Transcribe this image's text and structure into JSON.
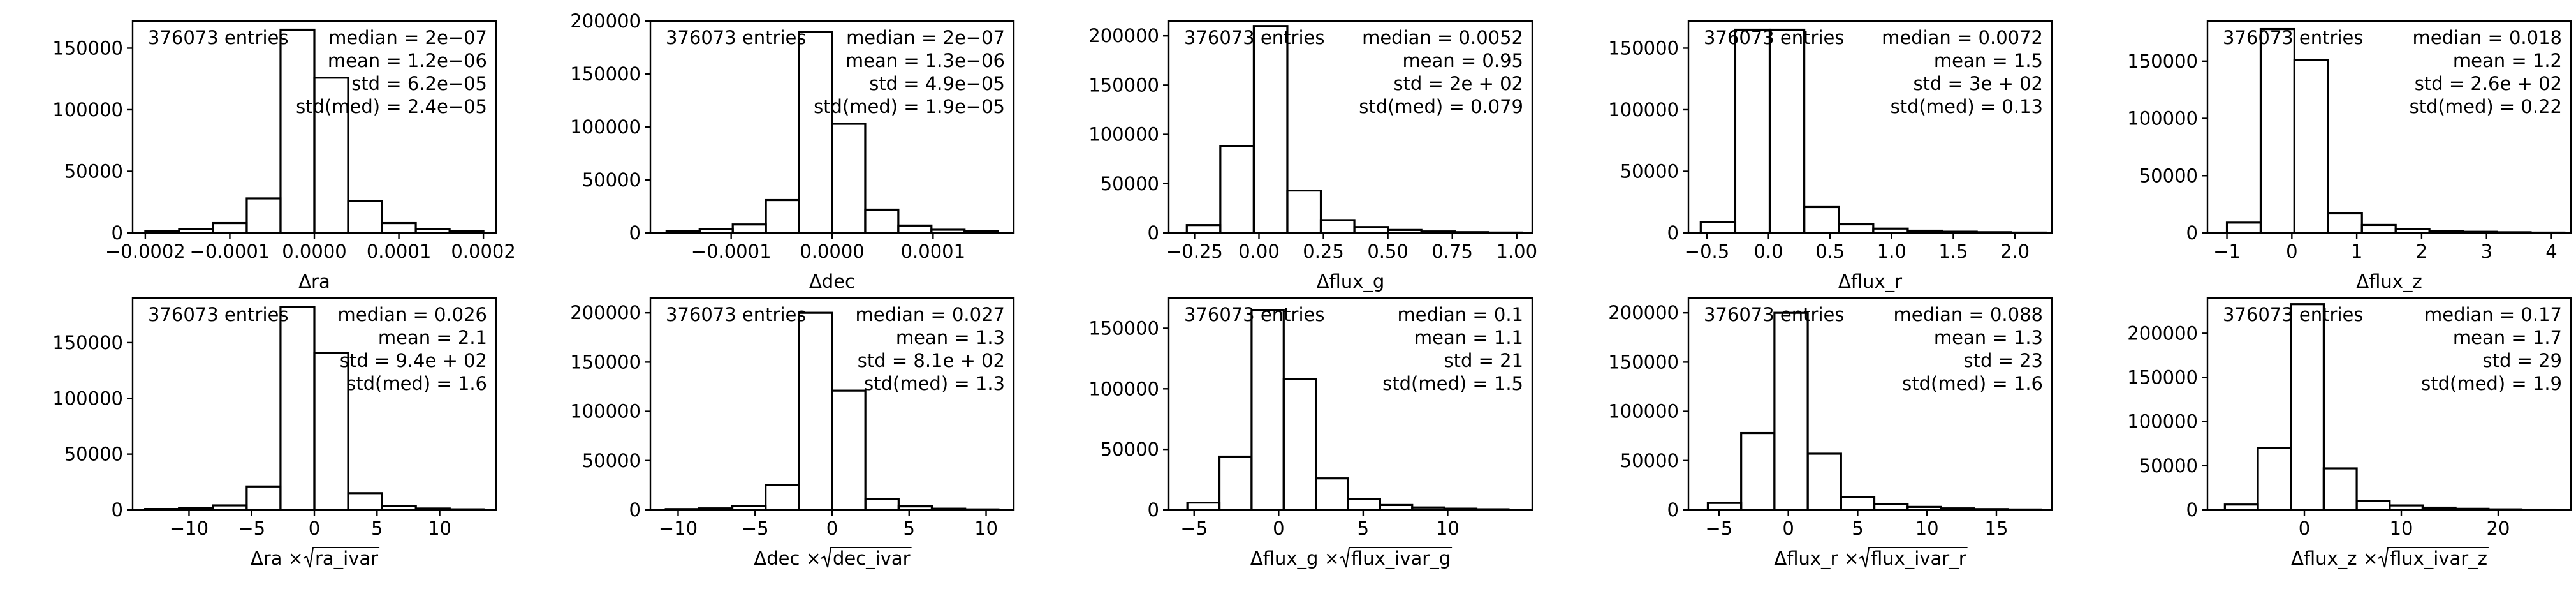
{
  "figure": {
    "background": "#ffffff",
    "line_color": "#000000"
  },
  "chart_data": [
    {
      "type": "bar",
      "xlabel": "Δra",
      "entries": "376073 entries",
      "stats": [
        "median = 2e−07",
        "mean = 1.2e−06",
        "std = 6.2e−05",
        "std(med) = 2.4e−05"
      ],
      "xlim": [
        -0.000215,
        0.000215
      ],
      "ylim": [
        0,
        172000
      ],
      "xticks": [
        -0.0002,
        -0.0001,
        0.0,
        0.0001,
        0.0002
      ],
      "xticklabels": [
        "−0.0002",
        "−0.0001",
        "0.0000",
        "0.0001",
        "0.0002"
      ],
      "yticks": [
        0,
        50000,
        100000,
        150000
      ],
      "yticklabels": [
        "0",
        "50000",
        "100000",
        "150000"
      ],
      "bin_edges": [
        -0.0002,
        -0.00016,
        -0.00012,
        -8e-05,
        -4e-05,
        0.0,
        4e-05,
        8e-05,
        0.00012,
        0.00016,
        0.0002
      ],
      "values": [
        1500,
        3000,
        8000,
        28000,
        165000,
        126000,
        26000,
        8000,
        3000,
        1500
      ]
    },
    {
      "type": "bar",
      "xlabel": "Δdec",
      "entries": "376073 entries",
      "stats": [
        "median = 2e−07",
        "mean = 1.3e−06",
        "std = 4.9e−05",
        "std(med) = 1.9e−05"
      ],
      "xlim": [
        -0.00018,
        0.00018
      ],
      "ylim": [
        0,
        200000
      ],
      "xticks": [
        -0.0001,
        0.0,
        0.0001
      ],
      "xticklabels": [
        "−0.0001",
        "0.0000",
        "0.0001"
      ],
      "yticks": [
        0,
        50000,
        100000,
        150000,
        200000
      ],
      "yticklabels": [
        "0",
        "50000",
        "100000",
        "150000",
        "200000"
      ],
      "bin_edges": [
        -0.000164,
        -0.0001312,
        -9.84e-05,
        -6.56e-05,
        -3.28e-05,
        0.0,
        3.28e-05,
        6.56e-05,
        9.84e-05,
        0.0001312,
        0.000164
      ],
      "values": [
        1500,
        3500,
        8000,
        31000,
        190000,
        103000,
        22000,
        7000,
        3000,
        1500
      ]
    },
    {
      "type": "bar",
      "xlabel": "Δflux_g",
      "entries": "376073 entries",
      "stats": [
        "median = 0.0052",
        "mean = 0.95",
        "std = 2e + 02",
        "std(med) = 0.079"
      ],
      "xlim": [
        -0.35,
        1.06
      ],
      "ylim": [
        0,
        215000
      ],
      "xticks": [
        -0.25,
        0.0,
        0.25,
        0.5,
        0.75,
        1.0
      ],
      "xticklabels": [
        "−0.25",
        "0.00",
        "0.25",
        "0.50",
        "0.75",
        "1.00"
      ],
      "yticks": [
        0,
        50000,
        100000,
        150000,
        200000
      ],
      "yticklabels": [
        "0",
        "50000",
        "100000",
        "150000",
        "200000"
      ],
      "bin_edges": [
        -0.28,
        -0.15,
        -0.02,
        0.11,
        0.24,
        0.37,
        0.5,
        0.63,
        0.76,
        0.89,
        1.02
      ],
      "values": [
        8000,
        88000,
        210000,
        43000,
        13000,
        6000,
        3000,
        1500,
        800,
        400
      ]
    },
    {
      "type": "bar",
      "xlabel": "Δflux_r",
      "entries": "376073 entries",
      "stats": [
        "median = 0.0072",
        "mean = 1.5",
        "std = 3e + 02",
        "std(med) = 0.13"
      ],
      "xlim": [
        -0.65,
        2.3
      ],
      "ylim": [
        0,
        172000
      ],
      "xticks": [
        -0.5,
        0.0,
        0.5,
        1.0,
        1.5,
        2.0
      ],
      "xticklabels": [
        "−0.5",
        "0.0",
        "0.5",
        "1.0",
        "1.5",
        "2.0"
      ],
      "yticks": [
        0,
        50000,
        100000,
        150000
      ],
      "yticklabels": [
        "0",
        "50000",
        "100000",
        "150000"
      ],
      "bin_edges": [
        -0.55,
        -0.27,
        0.01,
        0.29,
        0.57,
        0.85,
        1.13,
        1.41,
        1.69,
        1.97,
        2.25
      ],
      "values": [
        9000,
        165000,
        165000,
        21000,
        7000,
        3500,
        1800,
        1000,
        600,
        300
      ]
    },
    {
      "type": "bar",
      "xlabel": "Δflux_z",
      "entries": "376073 entries",
      "stats": [
        "median = 0.018",
        "mean = 1.2",
        "std = 2.6e + 02",
        "std(med) = 0.22"
      ],
      "xlim": [
        -1.3,
        4.3
      ],
      "ylim": [
        0,
        185000
      ],
      "xticks": [
        -1,
        0,
        1,
        2,
        3,
        4
      ],
      "xticklabels": [
        "−1",
        "0",
        "1",
        "2",
        "3",
        "4"
      ],
      "yticks": [
        0,
        50000,
        100000,
        150000
      ],
      "yticklabels": [
        "0",
        "50000",
        "100000",
        "150000"
      ],
      "bin_edges": [
        -1.0,
        -0.48,
        0.04,
        0.56,
        1.08,
        1.6,
        2.12,
        2.64,
        3.16,
        3.68,
        4.2
      ],
      "values": [
        9000,
        178000,
        151000,
        17000,
        7000,
        3500,
        1800,
        1000,
        600,
        300
      ]
    },
    {
      "type": "bar",
      "xlabel": "Δra × √ra_ivar",
      "xlabel_prefix": "Δra × ",
      "xlabel_root": "ra_ivar",
      "entries": "376073 entries",
      "stats": [
        "median = 0.026",
        "mean = 2.1",
        "std = 9.4e + 02",
        "std(med) = 1.6"
      ],
      "xlim": [
        -14.5,
        14.5
      ],
      "ylim": [
        0,
        190000
      ],
      "xticks": [
        -10,
        -5,
        0,
        5,
        10
      ],
      "xticklabels": [
        "−10",
        "−5",
        "0",
        "5",
        "10"
      ],
      "yticks": [
        0,
        50000,
        100000,
        150000
      ],
      "yticklabels": [
        "0",
        "50000",
        "100000",
        "150000"
      ],
      "bin_edges": [
        -13.5,
        -10.8,
        -8.1,
        -5.4,
        -2.7,
        0.0,
        2.7,
        5.4,
        8.1,
        10.8,
        13.5
      ],
      "values": [
        800,
        1500,
        4000,
        21000,
        182000,
        141000,
        15000,
        3500,
        1200,
        500
      ]
    },
    {
      "type": "bar",
      "xlabel": "Δdec × √dec_ivar",
      "xlabel_prefix": "Δdec × ",
      "xlabel_root": "dec_ivar",
      "entries": "376073 entries",
      "stats": [
        "median = 0.027",
        "mean = 1.3",
        "std = 8.1e + 02",
        "std(med) = 1.3"
      ],
      "xlim": [
        -11.8,
        11.8
      ],
      "ylim": [
        0,
        215000
      ],
      "xticks": [
        -10,
        -5,
        0,
        5,
        10
      ],
      "xticklabels": [
        "−10",
        "−5",
        "0",
        "5",
        "10"
      ],
      "yticks": [
        0,
        50000,
        100000,
        150000,
        200000
      ],
      "yticklabels": [
        "0",
        "50000",
        "100000",
        "150000",
        "200000"
      ],
      "bin_edges": [
        -10.8,
        -8.64,
        -6.48,
        -4.32,
        -2.16,
        0.0,
        2.16,
        4.32,
        6.48,
        8.64,
        10.8
      ],
      "values": [
        800,
        1500,
        4000,
        25000,
        200000,
        121000,
        11000,
        3500,
        1200,
        500
      ]
    },
    {
      "type": "bar",
      "xlabel": "Δflux_g × √flux_ivar_g",
      "xlabel_prefix": "Δflux_g × ",
      "xlabel_root": "flux_ivar_g",
      "entries": "376073 entries",
      "stats": [
        "median = 0.1",
        "mean = 1.1",
        "std = 21",
        "std(med) = 1.5"
      ],
      "xlim": [
        -6.5,
        15.0
      ],
      "ylim": [
        0,
        175000
      ],
      "xticks": [
        -5,
        0,
        5,
        10
      ],
      "xticklabels": [
        "−5",
        "0",
        "5",
        "10"
      ],
      "yticks": [
        0,
        50000,
        100000,
        150000
      ],
      "yticklabels": [
        "0",
        "50000",
        "100000",
        "150000"
      ],
      "bin_edges": [
        -5.4,
        -3.5,
        -1.6,
        0.3,
        2.2,
        4.1,
        6.0,
        7.9,
        9.8,
        11.7,
        13.6
      ],
      "values": [
        6000,
        44000,
        165000,
        108000,
        26000,
        9000,
        4000,
        2000,
        1000,
        500
      ]
    },
    {
      "type": "bar",
      "xlabel": "Δflux_r × √flux_ivar_r",
      "xlabel_prefix": "Δflux_r × ",
      "xlabel_root": "flux_ivar_r",
      "entries": "376073 entries",
      "stats": [
        "median = 0.088",
        "mean = 1.3",
        "std = 23",
        "std(med) = 1.6"
      ],
      "xlim": [
        -7.2,
        19.0
      ],
      "ylim": [
        0,
        215000
      ],
      "xticks": [
        -5,
        0,
        5,
        10,
        15
      ],
      "xticklabels": [
        "−5",
        "0",
        "5",
        "10",
        "15"
      ],
      "yticks": [
        0,
        50000,
        100000,
        150000,
        200000
      ],
      "yticklabels": [
        "0",
        "50000",
        "100000",
        "150000",
        "200000"
      ],
      "bin_edges": [
        -5.8,
        -3.4,
        -1.0,
        1.4,
        3.8,
        6.2,
        8.6,
        11.0,
        13.4,
        15.8,
        18.2
      ],
      "values": [
        7000,
        78000,
        200000,
        57000,
        13000,
        6000,
        3000,
        1500,
        800,
        400
      ]
    },
    {
      "type": "bar",
      "xlabel": "Δflux_z × √flux_ivar_z",
      "xlabel_prefix": "Δflux_z × ",
      "xlabel_root": "flux_ivar_z",
      "entries": "376073 entries",
      "stats": [
        "median = 0.17",
        "mean = 1.7",
        "std = 29",
        "std(med) = 1.9"
      ],
      "xlim": [
        -10.0,
        27.5
      ],
      "ylim": [
        0,
        240000
      ],
      "xticks": [
        0,
        10,
        20
      ],
      "xticklabels": [
        "0",
        "10",
        "20"
      ],
      "yticks": [
        0,
        50000,
        100000,
        150000,
        200000
      ],
      "yticklabels": [
        "0",
        "50000",
        "100000",
        "150000",
        "200000"
      ],
      "bin_edges": [
        -8.2,
        -4.8,
        -1.4,
        2.0,
        5.4,
        8.8,
        12.2,
        15.6,
        19.0,
        22.4,
        25.8
      ],
      "values": [
        6000,
        70000,
        233000,
        47000,
        10000,
        5000,
        2500,
        1200,
        600,
        300
      ]
    }
  ]
}
